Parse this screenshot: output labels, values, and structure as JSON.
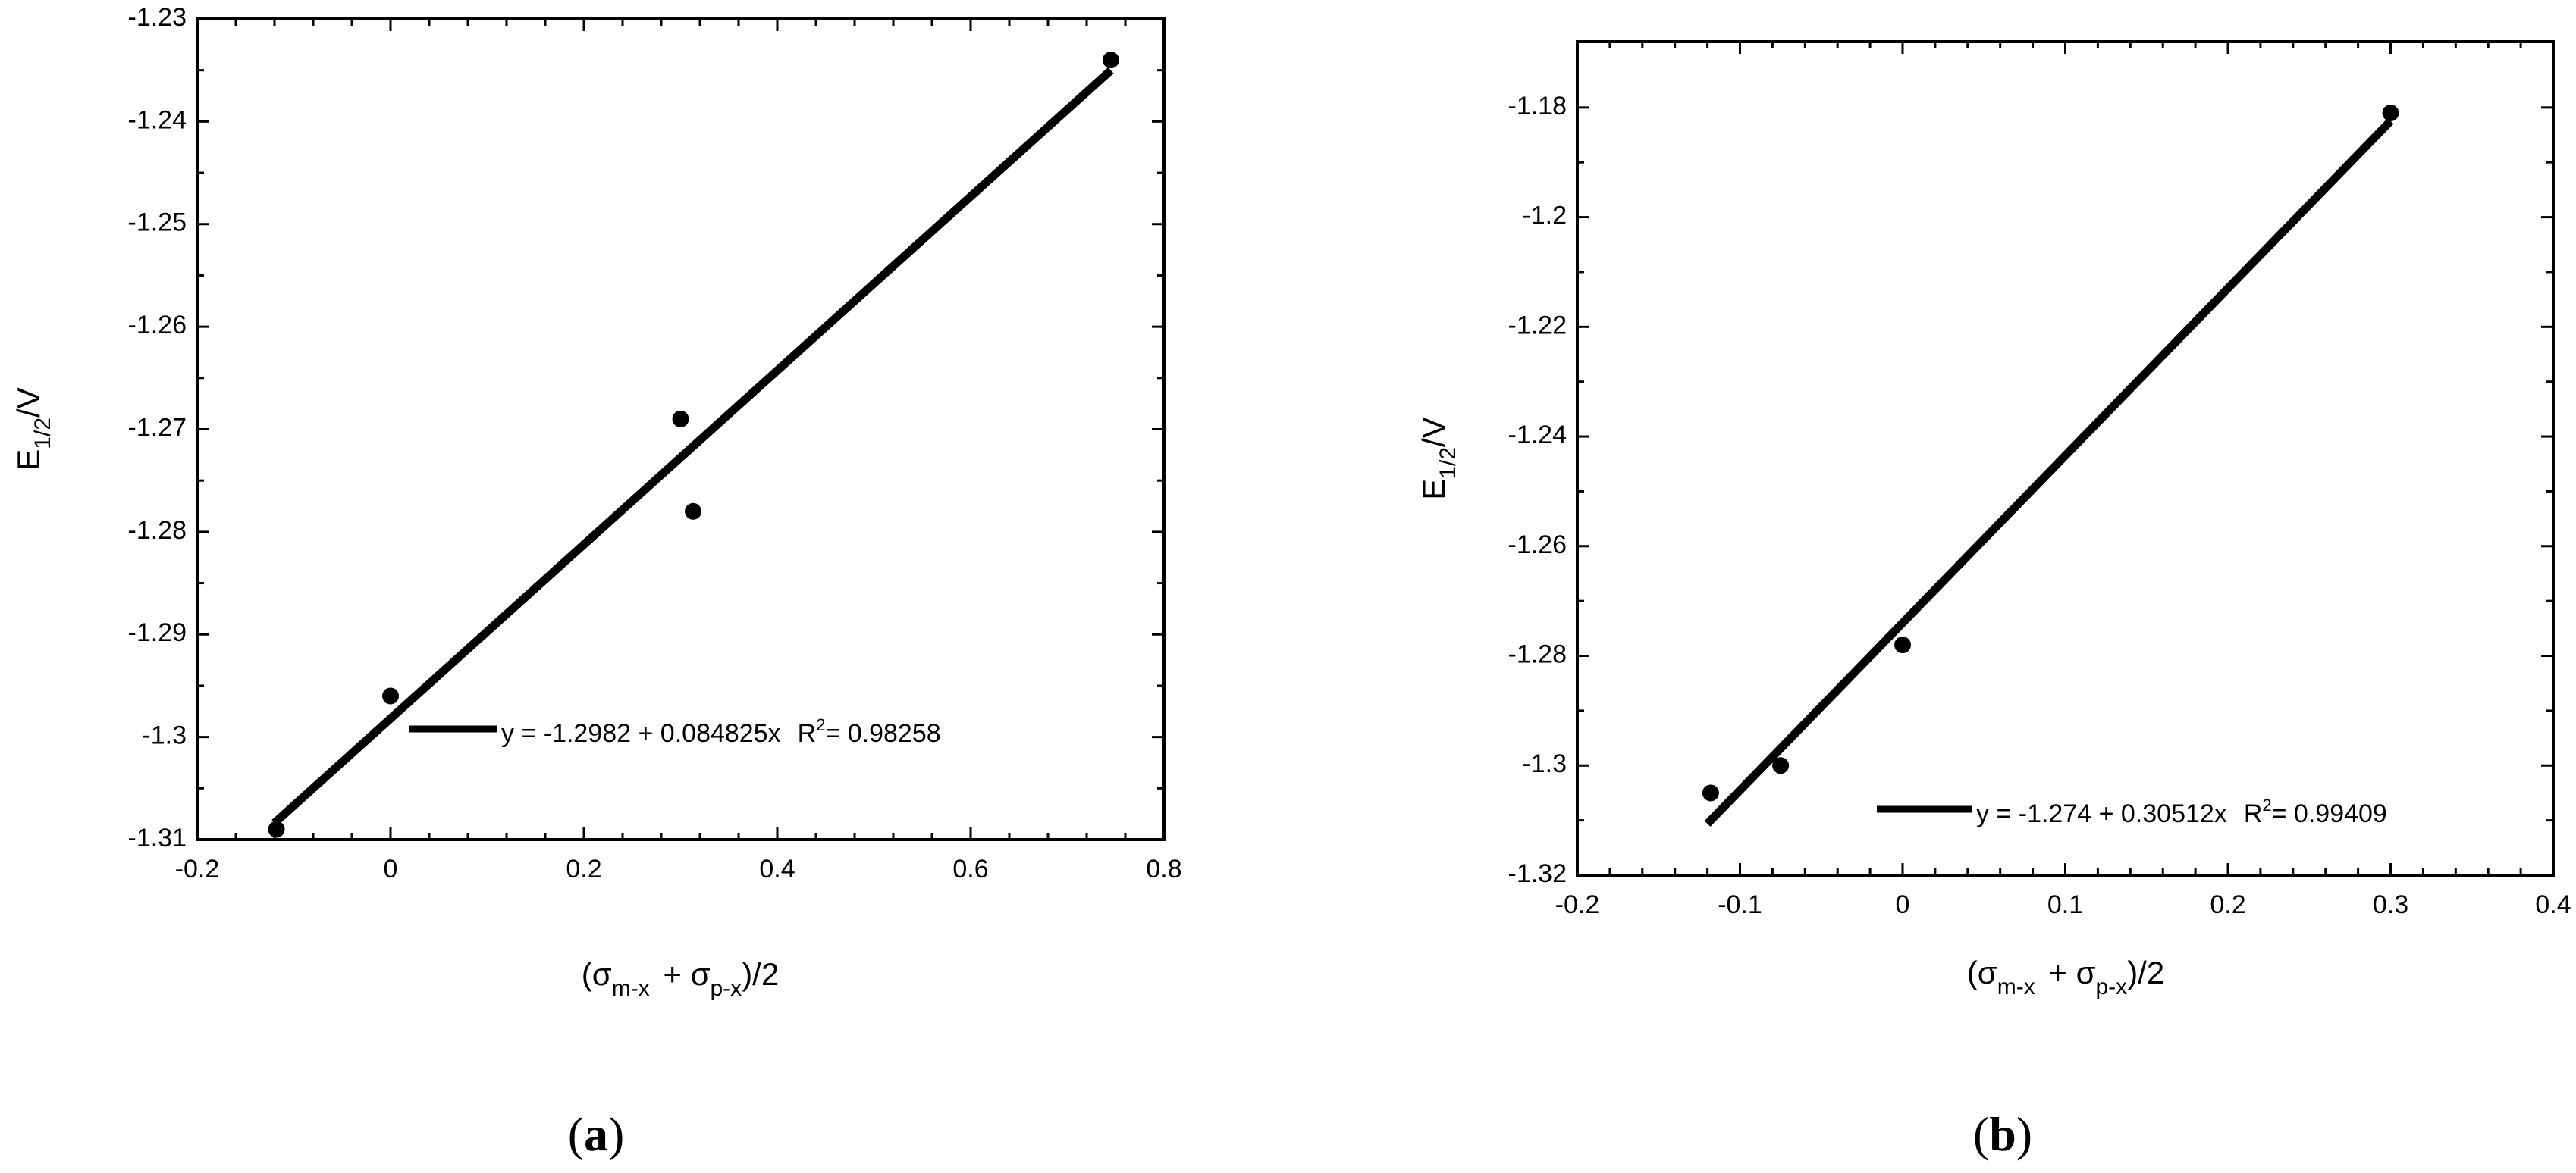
{
  "chart_data": [
    {
      "type": "scatter",
      "panel_label": "a",
      "x_axis": {
        "lim": [
          -0.2,
          0.8
        ],
        "ticks": [
          -0.2,
          0,
          0.2,
          0.4,
          0.6,
          0.8
        ],
        "tick_labels": [
          "-0.2",
          "0",
          "0.2",
          "0.4",
          "0.6",
          "0.8"
        ]
      },
      "y_axis": {
        "lim": [
          -1.31,
          -1.23
        ],
        "ticks": [
          -1.31,
          -1.3,
          -1.29,
          -1.28,
          -1.27,
          -1.26,
          -1.25,
          -1.24,
          -1.23
        ],
        "tick_labels": [
          "-1.31",
          "-1.3",
          "-1.29",
          "-1.28",
          "-1.27",
          "-1.26",
          "-1.25",
          "-1.24",
          "-1.23"
        ]
      },
      "xlabel": {
        "open": "(σ",
        "sub1": "m-x",
        "mid": " + σ",
        "sub2": "p-x",
        "close": ")/2"
      },
      "ylabel": {
        "main": "E",
        "sub": "1/2",
        "tail": "/V"
      },
      "points": [
        {
          "x": -0.118,
          "y": -1.309
        },
        {
          "x": 0.0,
          "y": -1.296
        },
        {
          "x": 0.3,
          "y": -1.269
        },
        {
          "x": 0.313,
          "y": -1.278
        },
        {
          "x": 0.745,
          "y": -1.234
        }
      ],
      "fit": {
        "intercept": -1.2982,
        "slope": 0.084825,
        "x_range": [
          -0.12,
          0.745
        ]
      },
      "legend": {
        "equation": "y = -1.2982 + 0.084825x",
        "r2_prefix": "R",
        "r2_sup": "2",
        "r2_value": "= 0.98258",
        "placement": "bottom-right"
      }
    },
    {
      "type": "scatter",
      "panel_label": "b",
      "x_axis": {
        "lim": [
          -0.2,
          0.4
        ],
        "ticks": [
          -0.2,
          -0.1,
          0,
          0.1,
          0.2,
          0.3,
          0.4
        ],
        "tick_labels": [
          "-0.2",
          "-0.1",
          "0",
          "0.1",
          "0.2",
          "0.3",
          "0.4"
        ]
      },
      "y_axis": {
        "lim": [
          -1.32,
          -1.168
        ],
        "ticks": [
          -1.32,
          -1.3,
          -1.28,
          -1.26,
          -1.24,
          -1.22,
          -1.2,
          -1.18
        ],
        "tick_labels": [
          "-1.32",
          "-1.3",
          "-1.28",
          "-1.26",
          "-1.24",
          "-1.22",
          "-1.2",
          "-1.18"
        ]
      },
      "xlabel": {
        "open": "(σ",
        "sub1": "m-x",
        "mid": " + σ",
        "sub2": "p-x",
        "close": ")/2"
      },
      "ylabel": {
        "main": "E",
        "sub": "1/2",
        "tail": "/V"
      },
      "points": [
        {
          "x": -0.118,
          "y": -1.305
        },
        {
          "x": -0.075,
          "y": -1.3
        },
        {
          "x": 0.0,
          "y": -1.278
        },
        {
          "x": 0.3,
          "y": -1.181
        }
      ],
      "fit": {
        "intercept": -1.274,
        "slope": 0.30512,
        "x_range": [
          -0.12,
          0.3
        ]
      },
      "legend": {
        "equation": "y = -1.274 + 0.30512x",
        "r2_prefix": "R",
        "r2_sup": "2",
        "r2_value": "= 0.99409",
        "placement": "bottom-right"
      }
    }
  ],
  "captions": [
    {
      "open": "(",
      "letter": "a",
      "close": ")"
    },
    {
      "open": "(",
      "letter": "b",
      "close": ")"
    }
  ]
}
